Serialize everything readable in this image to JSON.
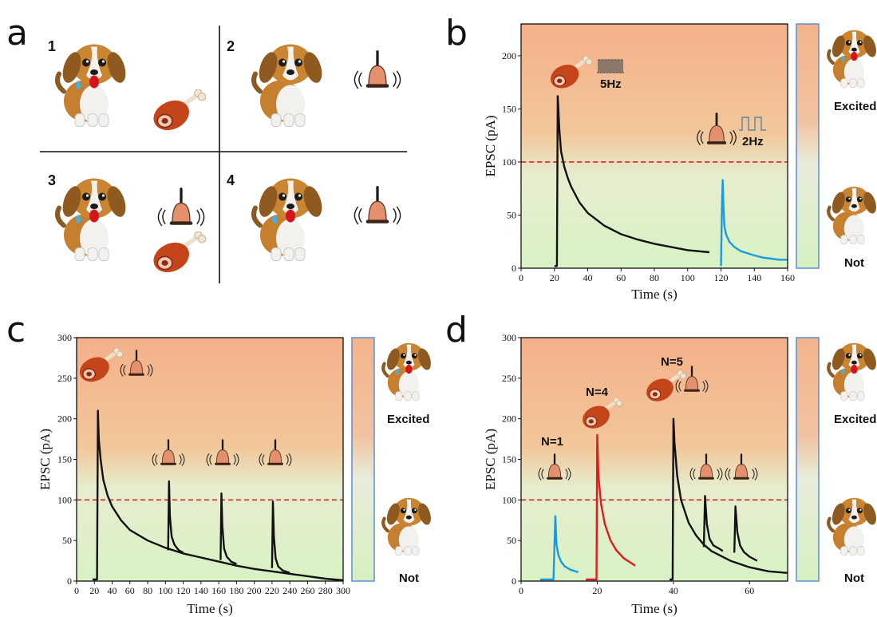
{
  "panels": {
    "a": {
      "label": "a",
      "quadrants": [
        {
          "number": "1",
          "items": [
            "dog-excited",
            "meat"
          ]
        },
        {
          "number": "2",
          "items": [
            "dog-calm",
            "bell"
          ]
        },
        {
          "number": "3",
          "items": [
            "dog-excited",
            "bell",
            "meat"
          ]
        },
        {
          "number": "4",
          "items": [
            "dog-excited",
            "bell"
          ]
        }
      ]
    },
    "b": {
      "label": "b",
      "annotations": {
        "meat_freq": "5Hz",
        "bell_freq": "2Hz"
      }
    },
    "c": {
      "label": "c"
    },
    "d": {
      "label": "d",
      "annotations": {
        "n1": "N=1",
        "n4": "N=4",
        "n5": "N=5"
      }
    }
  },
  "level_bar": {
    "high_label": "Excited",
    "low_label": "Not",
    "top_color": "#f3b890",
    "mid_color": "#e8f0e0",
    "bottom_color": "#d8f0c0"
  },
  "colors": {
    "black": "#111111",
    "blue": "#1a9be0",
    "red": "#e01b1b",
    "threshold": "#e02020",
    "bg_top": "#f4b48c",
    "bg_bottom": "#d9f2c6"
  },
  "chart_data": [
    {
      "id": "b",
      "type": "line",
      "xlabel": "Time (s)",
      "ylabel": "EPSC (pA)",
      "xlim": [
        0,
        160
      ],
      "ylim": [
        0,
        230
      ],
      "xticks": [
        0,
        20,
        40,
        60,
        80,
        100,
        120,
        140,
        160
      ],
      "yticks": [
        0,
        50,
        100,
        150,
        200
      ],
      "threshold": 100,
      "series": [
        {
          "color": "#111111",
          "x": [
            20,
            21.5,
            22,
            23,
            24,
            26,
            28,
            30,
            35,
            40,
            50,
            60,
            70,
            80,
            90,
            100,
            113
          ],
          "y": [
            2,
            2,
            162,
            130,
            110,
            95,
            85,
            77,
            62,
            52,
            40,
            32,
            27,
            23,
            20,
            17,
            15
          ]
        },
        {
          "color": "#1a9be0",
          "x": [
            120,
            120.5,
            121,
            121.5,
            122,
            123,
            125,
            128,
            132,
            136,
            140,
            145,
            150,
            155,
            160
          ],
          "y": [
            2,
            50,
            83,
            58,
            40,
            32,
            25,
            20,
            16,
            14,
            12,
            10,
            9,
            8,
            8
          ]
        }
      ]
    },
    {
      "id": "c",
      "type": "line",
      "xlabel": "Time (s)",
      "ylabel": "EPSC (pA)",
      "xlim": [
        0,
        300
      ],
      "ylim": [
        0,
        300
      ],
      "xticks": [
        0,
        20,
        40,
        60,
        80,
        100,
        120,
        140,
        160,
        180,
        200,
        220,
        240,
        260,
        280,
        300
      ],
      "yticks": [
        0,
        50,
        100,
        150,
        200,
        250,
        300
      ],
      "threshold": 100,
      "series": [
        {
          "color": "#111111",
          "x": [
            18,
            23,
            24,
            25,
            27,
            30,
            35,
            40,
            50,
            60,
            80,
            100,
            120,
            140,
            160,
            180,
            200,
            220,
            240,
            260,
            280,
            300
          ],
          "y": [
            2,
            2,
            210,
            175,
            150,
            125,
            105,
            92,
            75,
            63,
            50,
            41,
            34,
            29,
            24,
            19,
            15,
            12,
            9,
            6,
            3,
            1
          ]
        },
        {
          "color": "#111111",
          "x": [
            103,
            104,
            105,
            107,
            110,
            115,
            120
          ],
          "y": [
            38,
            123,
            80,
            55,
            45,
            38,
            35
          ]
        },
        {
          "color": "#111111",
          "x": [
            162,
            163,
            164,
            166,
            169,
            174,
            180
          ],
          "y": [
            26,
            108,
            68,
            40,
            30,
            24,
            21
          ]
        },
        {
          "color": "#111111",
          "x": [
            220,
            221,
            222,
            224,
            227,
            232,
            240
          ],
          "y": [
            16,
            98,
            55,
            28,
            18,
            13,
            10
          ]
        }
      ]
    },
    {
      "id": "d",
      "type": "line",
      "xlabel": "Time (s)",
      "ylabel": "EPSC (pA)",
      "xlim": [
        0,
        70
      ],
      "ylim": [
        0,
        300
      ],
      "xticks": [
        0,
        20,
        40,
        60
      ],
      "yticks": [
        0,
        50,
        100,
        150,
        200,
        250,
        300
      ],
      "threshold": 100,
      "series": [
        {
          "color": "#1a9be0",
          "x": [
            5,
            8.5,
            9,
            9.3,
            9.8,
            10.5,
            11.5,
            13,
            15
          ],
          "y": [
            2,
            2,
            80,
            45,
            32,
            24,
            18,
            14,
            11
          ]
        },
        {
          "color": "#e01b1b",
          "x": [
            17,
            19.8,
            20,
            20.3,
            21,
            22,
            23.5,
            25,
            27,
            30
          ],
          "y": [
            2,
            2,
            180,
            130,
            95,
            70,
            50,
            38,
            28,
            19
          ]
        },
        {
          "color": "#111111",
          "x": [
            39,
            39.8,
            40,
            40.3,
            41,
            42,
            44,
            46,
            48,
            50,
            55,
            60,
            65,
            70
          ],
          "y": [
            2,
            2,
            200,
            170,
            130,
            100,
            72,
            56,
            45,
            37,
            25,
            17,
            12,
            10
          ]
        },
        {
          "color": "#111111",
          "x": [
            48,
            48.3,
            48.8,
            49.5,
            50.5,
            52,
            53
          ],
          "y": [
            42,
            105,
            70,
            52,
            44,
            40,
            37
          ]
        },
        {
          "color": "#111111",
          "x": [
            56,
            56.3,
            56.8,
            57.5,
            58.5,
            60,
            62
          ],
          "y": [
            35,
            92,
            60,
            44,
            36,
            30,
            25
          ]
        }
      ]
    }
  ]
}
